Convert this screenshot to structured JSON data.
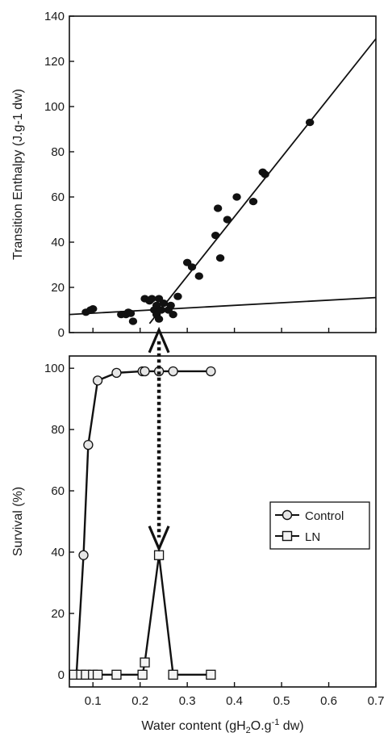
{
  "chart_data": [
    {
      "type": "scatter",
      "title": "",
      "xlabel": "",
      "ylabel": "Transition Enthalpy (J.g-1 dw)",
      "xlim": [
        0.05,
        0.7
      ],
      "ylim": [
        0,
        140
      ],
      "yticks": [
        0,
        20,
        40,
        60,
        80,
        100,
        120,
        140
      ],
      "grid": false,
      "series": [
        {
          "type": "scatter",
          "points": [
            [
              0.085,
              9
            ],
            [
              0.095,
              10
            ],
            [
              0.1,
              10.5
            ],
            [
              0.16,
              8
            ],
            [
              0.17,
              8
            ],
            [
              0.175,
              9
            ],
            [
              0.18,
              8.5
            ],
            [
              0.185,
              5
            ],
            [
              0.21,
              15
            ],
            [
              0.22,
              14
            ],
            [
              0.225,
              15
            ],
            [
              0.23,
              10
            ],
            [
              0.235,
              12
            ],
            [
              0.235,
              8
            ],
            [
              0.24,
              15
            ],
            [
              0.245,
              10
            ],
            [
              0.24,
              6
            ],
            [
              0.25,
              13
            ],
            [
              0.26,
              10
            ],
            [
              0.265,
              12
            ],
            [
              0.27,
              8
            ],
            [
              0.28,
              16
            ],
            [
              0.3,
              31
            ],
            [
              0.31,
              29
            ],
            [
              0.325,
              25
            ],
            [
              0.36,
              43
            ],
            [
              0.365,
              55
            ],
            [
              0.37,
              33
            ],
            [
              0.385,
              50
            ],
            [
              0.405,
              60
            ],
            [
              0.44,
              58
            ],
            [
              0.46,
              71
            ],
            [
              0.465,
              70
            ],
            [
              0.56,
              93
            ]
          ]
        }
      ],
      "fit_lines": [
        {
          "x": [
            0.05,
            0.7
          ],
          "y": [
            8,
            15.5
          ]
        },
        {
          "x": [
            0.22,
            0.7
          ],
          "y": [
            4,
            130
          ]
        }
      ]
    },
    {
      "type": "line",
      "title": "",
      "xlabel": "Water content (gH₂O.g⁻¹ dw)",
      "ylabel": "Survival (%)",
      "xlim": [
        0.05,
        0.7
      ],
      "ylim": [
        -4,
        104
      ],
      "xticks": [
        0.1,
        0.2,
        0.3,
        0.4,
        0.5,
        0.6,
        0.7
      ],
      "yticks": [
        0,
        20,
        40,
        60,
        80,
        100
      ],
      "grid": false,
      "legend_position": "center-right",
      "series": [
        {
          "name": "Control",
          "marker": "circle",
          "x": [
            0.065,
            0.08,
            0.09,
            0.11,
            0.15,
            0.205,
            0.21,
            0.24,
            0.27,
            0.35
          ],
          "y": [
            0,
            39,
            75,
            96,
            98.5,
            99,
            99,
            99,
            99,
            99
          ]
        },
        {
          "name": "LN",
          "marker": "square",
          "x": [
            0.06,
            0.075,
            0.085,
            0.1,
            0.11,
            0.15,
            0.205,
            0.21,
            0.24,
            0.27,
            0.35
          ],
          "y": [
            0,
            0,
            0,
            0,
            0,
            0,
            0,
            4,
            39,
            0,
            0
          ]
        }
      ],
      "annotation": {
        "type": "dotted-double-arrow",
        "x": 0.24,
        "from_top_panel_y": 4,
        "to_bottom_panel_y": 39
      }
    }
  ]
}
